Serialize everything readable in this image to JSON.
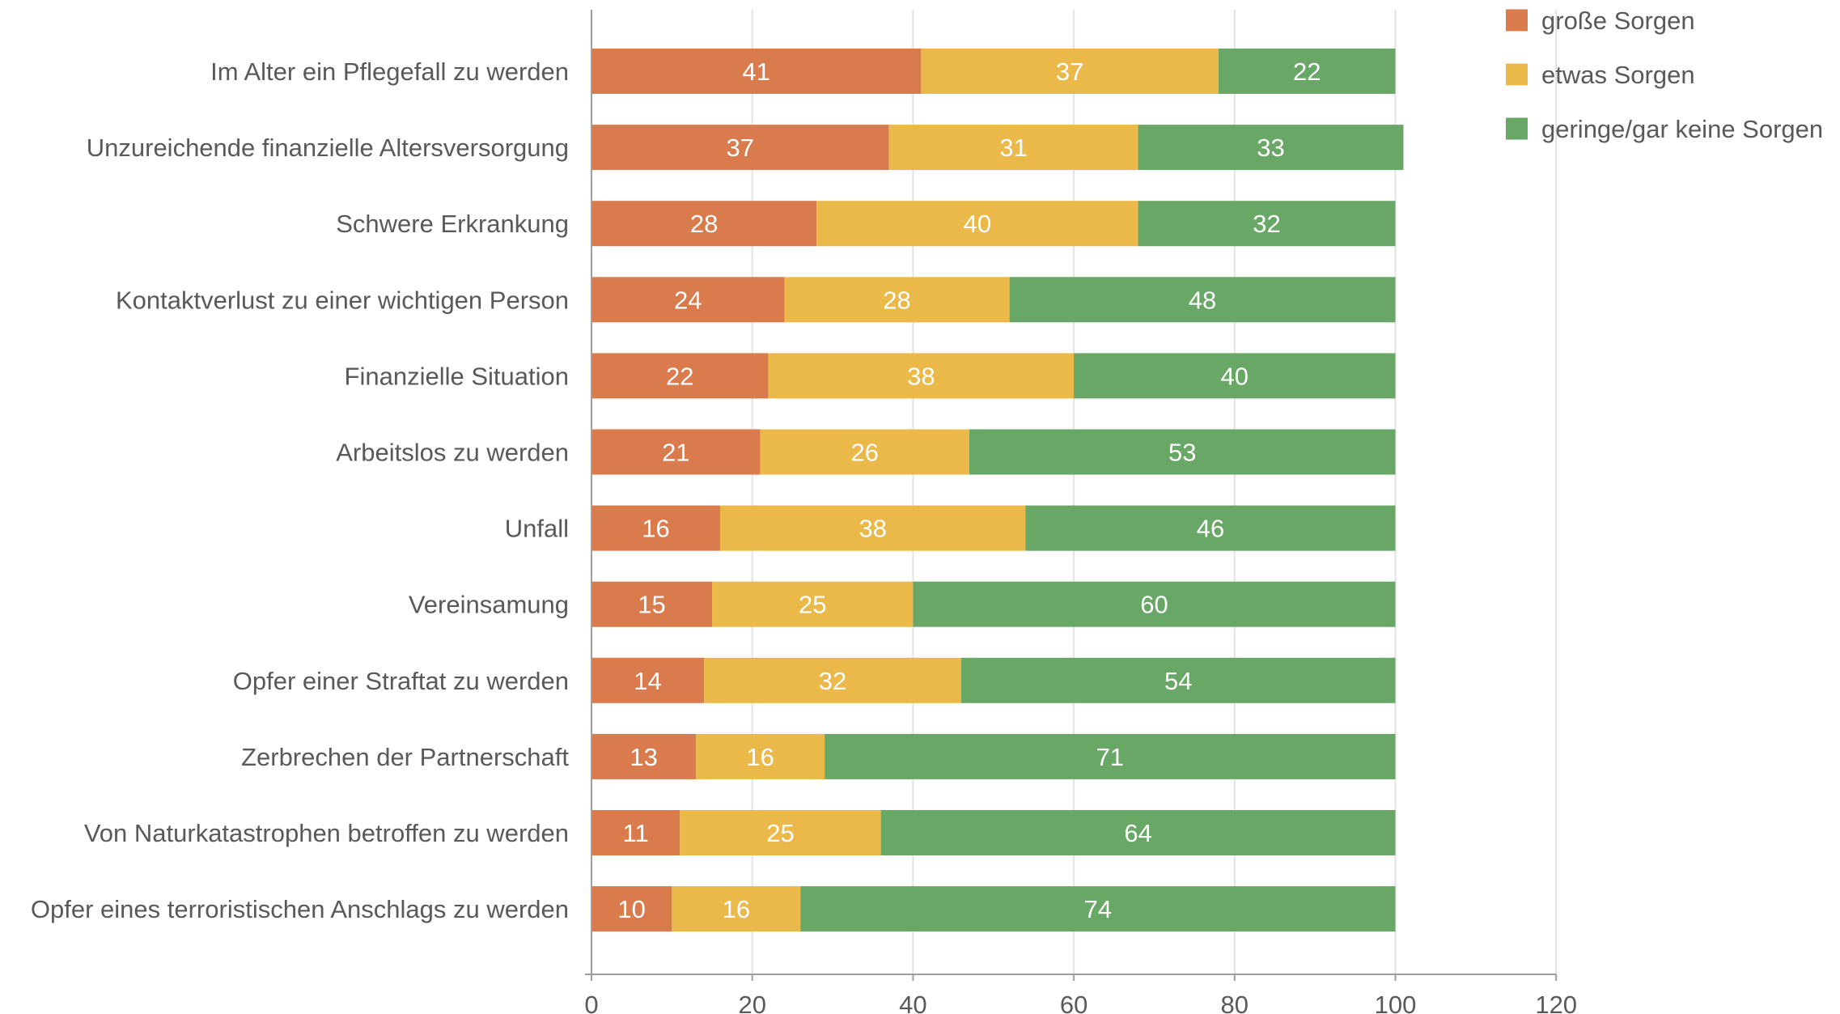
{
  "chart_data": {
    "type": "bar",
    "orientation": "horizontal",
    "stacked": true,
    "categories": [
      "Im Alter ein Pflegefall zu werden",
      "Unzureichende finanzielle Altersversorgung",
      "Schwere Erkrankung",
      "Kontaktverlust zu einer wichtigen Person",
      "Finanzielle Situation",
      "Arbeitslos zu werden",
      "Unfall",
      "Vereinsamung",
      "Opfer einer Straftat zu werden",
      "Zerbrechen der Partnerschaft",
      "Von Naturkatastrophen betroffen zu werden",
      "Opfer eines terroristischen Anschlags zu werden"
    ],
    "series": [
      {
        "name": "große Sorgen",
        "color": "#d97b4d",
        "values": [
          41,
          37,
          28,
          24,
          22,
          21,
          16,
          15,
          14,
          13,
          11,
          10
        ]
      },
      {
        "name": "etwas Sorgen",
        "color": "#ebb84a",
        "values": [
          37,
          31,
          40,
          28,
          38,
          26,
          38,
          25,
          32,
          16,
          25,
          16
        ]
      },
      {
        "name": "geringe/gar keine Sorgen",
        "color": "#68a765",
        "values": [
          22,
          33,
          32,
          48,
          40,
          53,
          46,
          60,
          54,
          71,
          64,
          74
        ]
      }
    ],
    "xlim": [
      0,
      120
    ],
    "xticks": [
      0,
      20,
      40,
      60,
      80,
      100,
      120
    ],
    "grid": "vertical",
    "legend": "top-right",
    "title": "",
    "xlabel": "",
    "ylabel": ""
  }
}
